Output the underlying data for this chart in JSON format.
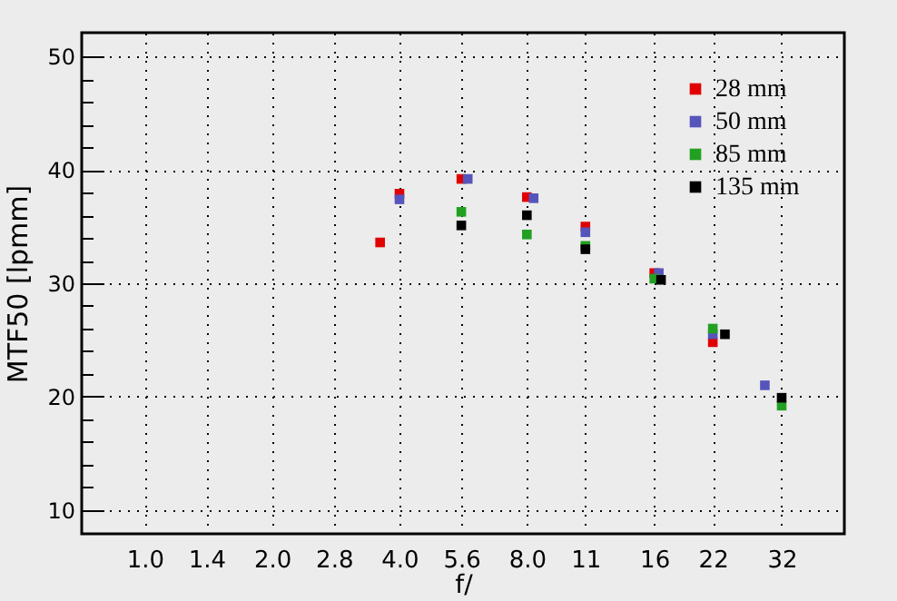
{
  "chart_data": {
    "type": "scatter",
    "xlabel": "f/",
    "ylabel": "MTF50 [lpmm]",
    "log": "x",
    "grid": true,
    "legend": "top right",
    "marker": "square",
    "xlim": [
      0.71,
      45
    ],
    "ylim": [
      7.9,
      52.1
    ],
    "xticks": [
      {
        "value": 1,
        "label": "1.0"
      },
      1.4,
      {
        "value": 2,
        "label": "2.0"
      },
      2.8,
      {
        "value": 4,
        "label": "4.0"
      },
      5.6,
      {
        "value": 8,
        "label": "8.0"
      },
      11,
      16,
      22,
      32
    ],
    "yticks": [
      10,
      {
        "value": 12,
        "label": null
      },
      {
        "value": 14,
        "label": null
      },
      {
        "value": 16,
        "label": null
      },
      {
        "value": 18,
        "label": null
      },
      20,
      {
        "value": 22,
        "label": null
      },
      {
        "value": 24,
        "label": null
      },
      {
        "value": 26,
        "label": null
      },
      {
        "value": 28,
        "label": null
      },
      30,
      {
        "value": 32,
        "label": null
      },
      {
        "value": 34,
        "label": null
      },
      {
        "value": 36,
        "label": null
      },
      {
        "value": 38,
        "label": null
      },
      40,
      {
        "value": 42,
        "label": null
      },
      {
        "value": 44,
        "label": null
      },
      {
        "value": 46,
        "label": null
      },
      {
        "value": 48,
        "label": null
      },
      50
    ],
    "series": [
      {
        "name": "28 mm",
        "color": "#e00000",
        "x": [
          3.6,
          4,
          5.6,
          8,
          11,
          16,
          22
        ],
        "values": [
          33.6,
          37.9,
          39.2,
          37.6,
          35.0,
          30.9,
          24.8
        ]
      },
      {
        "name": "50 mm",
        "color": "#5555bb",
        "x": [
          4,
          5.8,
          8.3,
          11,
          16.4,
          22,
          29.2
        ],
        "values": [
          37.4,
          39.2,
          37.5,
          34.5,
          30.9,
          25.5,
          21.0
        ]
      },
      {
        "name": "85 mm",
        "color": "#22a022",
        "x": [
          5.6,
          8,
          11,
          16,
          22,
          32
        ],
        "values": [
          36.3,
          34.3,
          33.3,
          30.4,
          26.0,
          19.2
        ]
      },
      {
        "name": "135 mm",
        "color": "#000000",
        "x": [
          5.6,
          8,
          11,
          16.6,
          23.5,
          32
        ],
        "values": [
          35.1,
          36.0,
          33.0,
          30.3,
          25.5,
          19.9
        ]
      }
    ]
  }
}
